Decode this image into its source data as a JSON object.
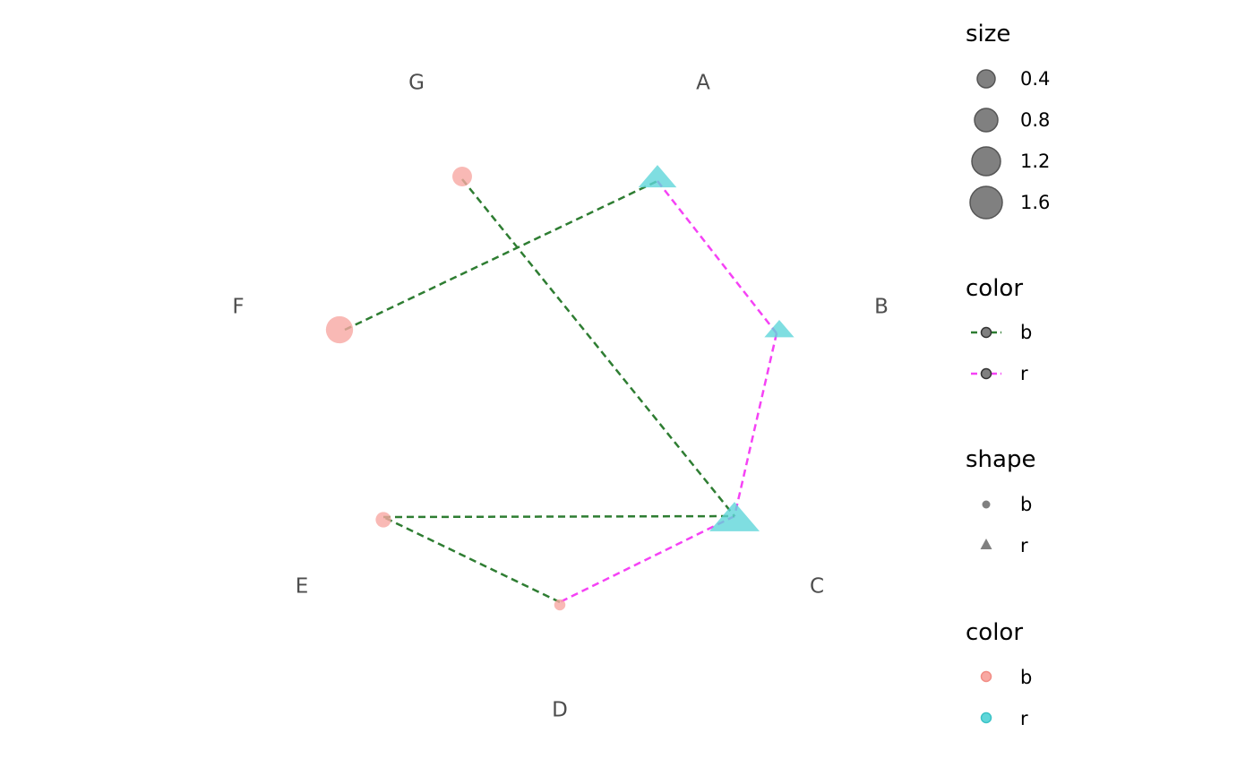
{
  "network": {
    "nodes": [
      {
        "id": "A",
        "label": "A",
        "group": "r",
        "shape": "triangle",
        "size": 0.8
      },
      {
        "id": "B",
        "label": "B",
        "group": "r",
        "shape": "triangle",
        "size": 0.4
      },
      {
        "id": "C",
        "label": "C",
        "group": "r",
        "shape": "triangle",
        "size": 1.6
      },
      {
        "id": "D",
        "label": "D",
        "group": "b",
        "shape": "circle",
        "size": 0.1
      },
      {
        "id": "E",
        "label": "E",
        "group": "b",
        "shape": "circle",
        "size": 0.3
      },
      {
        "id": "F",
        "label": "F",
        "group": "b",
        "shape": "circle",
        "size": 1.4
      },
      {
        "id": "G",
        "label": "G",
        "group": "b",
        "shape": "circle",
        "size": 0.6
      }
    ],
    "edges": [
      {
        "from": "A",
        "to": "B",
        "color": "r"
      },
      {
        "from": "B",
        "to": "C",
        "color": "r"
      },
      {
        "from": "C",
        "to": "D",
        "color": "r"
      },
      {
        "from": "D",
        "to": "E",
        "color": "b"
      },
      {
        "from": "E",
        "to": "C",
        "color": "b"
      },
      {
        "from": "F",
        "to": "A",
        "color": "b"
      },
      {
        "from": "G",
        "to": "C",
        "color": "b"
      }
    ]
  },
  "colors": {
    "edge_b": "#2e7d32",
    "edge_r": "#f542f5",
    "node_b": "#f8a8a2",
    "node_r": "#5fd6d9",
    "legend_grey": "#808080",
    "label_grey": "#4d4d4d"
  },
  "legend": {
    "size": {
      "title": "size",
      "values": [
        "0.4",
        "0.8",
        "1.2",
        "1.6"
      ]
    },
    "edge_color": {
      "title": "color",
      "items": [
        {
          "label": "b",
          "key": "edge_b"
        },
        {
          "label": "r",
          "key": "edge_r"
        }
      ]
    },
    "shape": {
      "title": "shape",
      "items": [
        {
          "label": "b",
          "shape": "circle"
        },
        {
          "label": "r",
          "shape": "triangle"
        }
      ]
    },
    "node_color": {
      "title": "color",
      "items": [
        {
          "label": "b",
          "key": "node_b"
        },
        {
          "label": "r",
          "key": "node_r"
        }
      ]
    }
  }
}
